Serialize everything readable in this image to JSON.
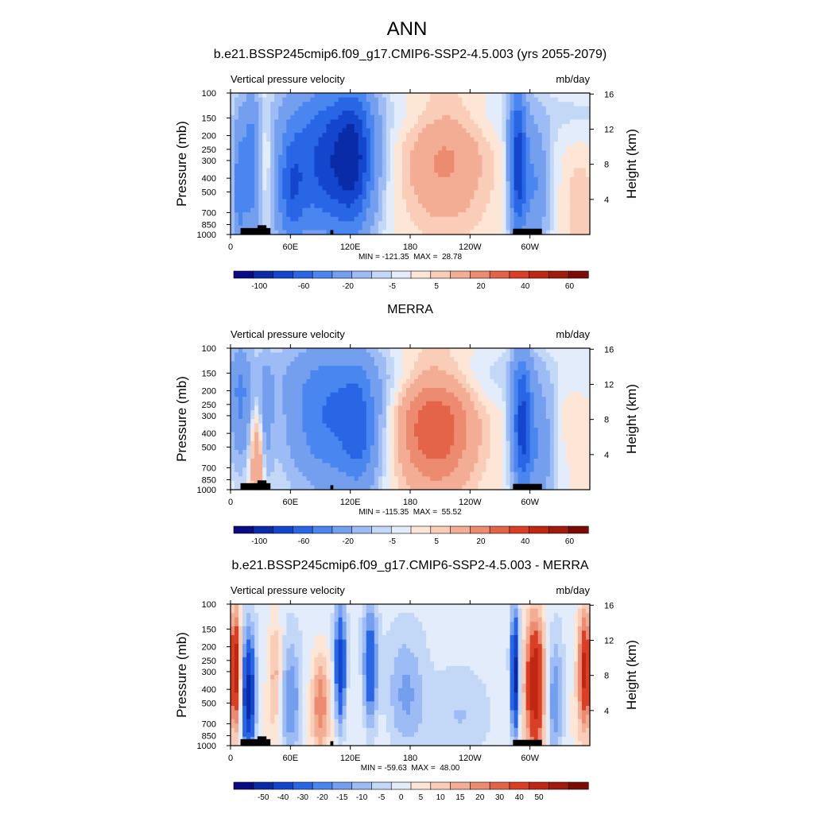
{
  "page_title": "ANN",
  "colors": {
    "cbar_main": [
      "#0a0a82",
      "#0a2ba8",
      "#1346cc",
      "#2866e6",
      "#4a86f0",
      "#749fee",
      "#9dbbf4",
      "#c3d7f7",
      "#e2ecfa",
      "#fde6d6",
      "#f9cdb7",
      "#f3ad95",
      "#ec8b70",
      "#e4644a",
      "#da3f26",
      "#c02713",
      "#a01b0b",
      "#7b0b03"
    ],
    "cbar_diff": [
      "#0a0a82",
      "#0a2ba8",
      "#1346cc",
      "#2866e6",
      "#4a86f0",
      "#749fee",
      "#9dbbf4",
      "#c3d7f7",
      "#e2ecfa",
      "#fde6d6",
      "#f9cdb7",
      "#f3ad95",
      "#ec8b70",
      "#e4644a",
      "#da3f26",
      "#c02713",
      "#a01b0b",
      "#7b0b03"
    ],
    "terrain": "#000000"
  },
  "chart_data": [
    {
      "type": "heatmap",
      "title": "b.e21.BSSP245cmip6.f09_g17.CMIP6-SSP2-4.5.003 (yrs 2055-2079)",
      "left_string": "Vertical pressure velocity",
      "right_string": "mb/day",
      "ylabel": "Pressure (mb)",
      "ylabel_right": "Height (km)",
      "yticks": [
        "100",
        "150",
        "200",
        "250",
        "300",
        "400",
        "500",
        "700",
        "850",
        "1000"
      ],
      "yticks_right": [
        "16",
        "12",
        "8",
        "4"
      ],
      "xticks": [
        "0",
        "60E",
        "120E",
        "180",
        "120W",
        "60W"
      ],
      "xlim_lon": [
        0,
        360
      ],
      "ylim_mb": [
        1000,
        100
      ],
      "stats": "MIN = -121.35  MAX =  28.78",
      "colorbar_labels": [
        "-100",
        "-60",
        "-20",
        "-5",
        "5",
        "20",
        "40",
        "60"
      ],
      "field": "model"
    },
    {
      "type": "heatmap",
      "title": "MERRA",
      "left_string": "Vertical pressure velocity",
      "right_string": "mb/day",
      "ylabel": "Pressure (mb)",
      "ylabel_right": "Height (km)",
      "yticks": [
        "100",
        "150",
        "200",
        "250",
        "300",
        "400",
        "500",
        "700",
        "850",
        "1000"
      ],
      "yticks_right": [
        "16",
        "12",
        "8",
        "4"
      ],
      "xticks": [
        "0",
        "60E",
        "120E",
        "180",
        "120W",
        "60W"
      ],
      "xlim_lon": [
        0,
        360
      ],
      "ylim_mb": [
        1000,
        100
      ],
      "stats": "MIN = -115.35  MAX =  55.52",
      "colorbar_labels": [
        "-100",
        "-60",
        "-20",
        "-5",
        "5",
        "20",
        "40",
        "60"
      ],
      "field": "obs"
    },
    {
      "type": "heatmap",
      "title": "b.e21.BSSP245cmip6.f09_g17.CMIP6-SSP2-4.5.003 - MERRA",
      "left_string": "Vertical pressure velocity",
      "right_string": "mb/day",
      "ylabel": "Pressure (mb)",
      "ylabel_right": "Height (km)",
      "yticks": [
        "100",
        "150",
        "200",
        "250",
        "300",
        "400",
        "500",
        "700",
        "850",
        "1000"
      ],
      "yticks_right": [
        "16",
        "12",
        "8",
        "4"
      ],
      "xticks": [
        "0",
        "60E",
        "120E",
        "180",
        "120W",
        "60W"
      ],
      "xlim_lon": [
        0,
        360
      ],
      "ylim_mb": [
        1000,
        100
      ],
      "stats": "MIN = -59.63  MAX =  48.00",
      "colorbar_labels": [
        "-50",
        "-40",
        "-30",
        "-20",
        "-15",
        "-10",
        "-5",
        "0",
        "5",
        "10",
        "15",
        "20",
        "30",
        "40",
        "50"
      ],
      "field": "diff"
    }
  ]
}
